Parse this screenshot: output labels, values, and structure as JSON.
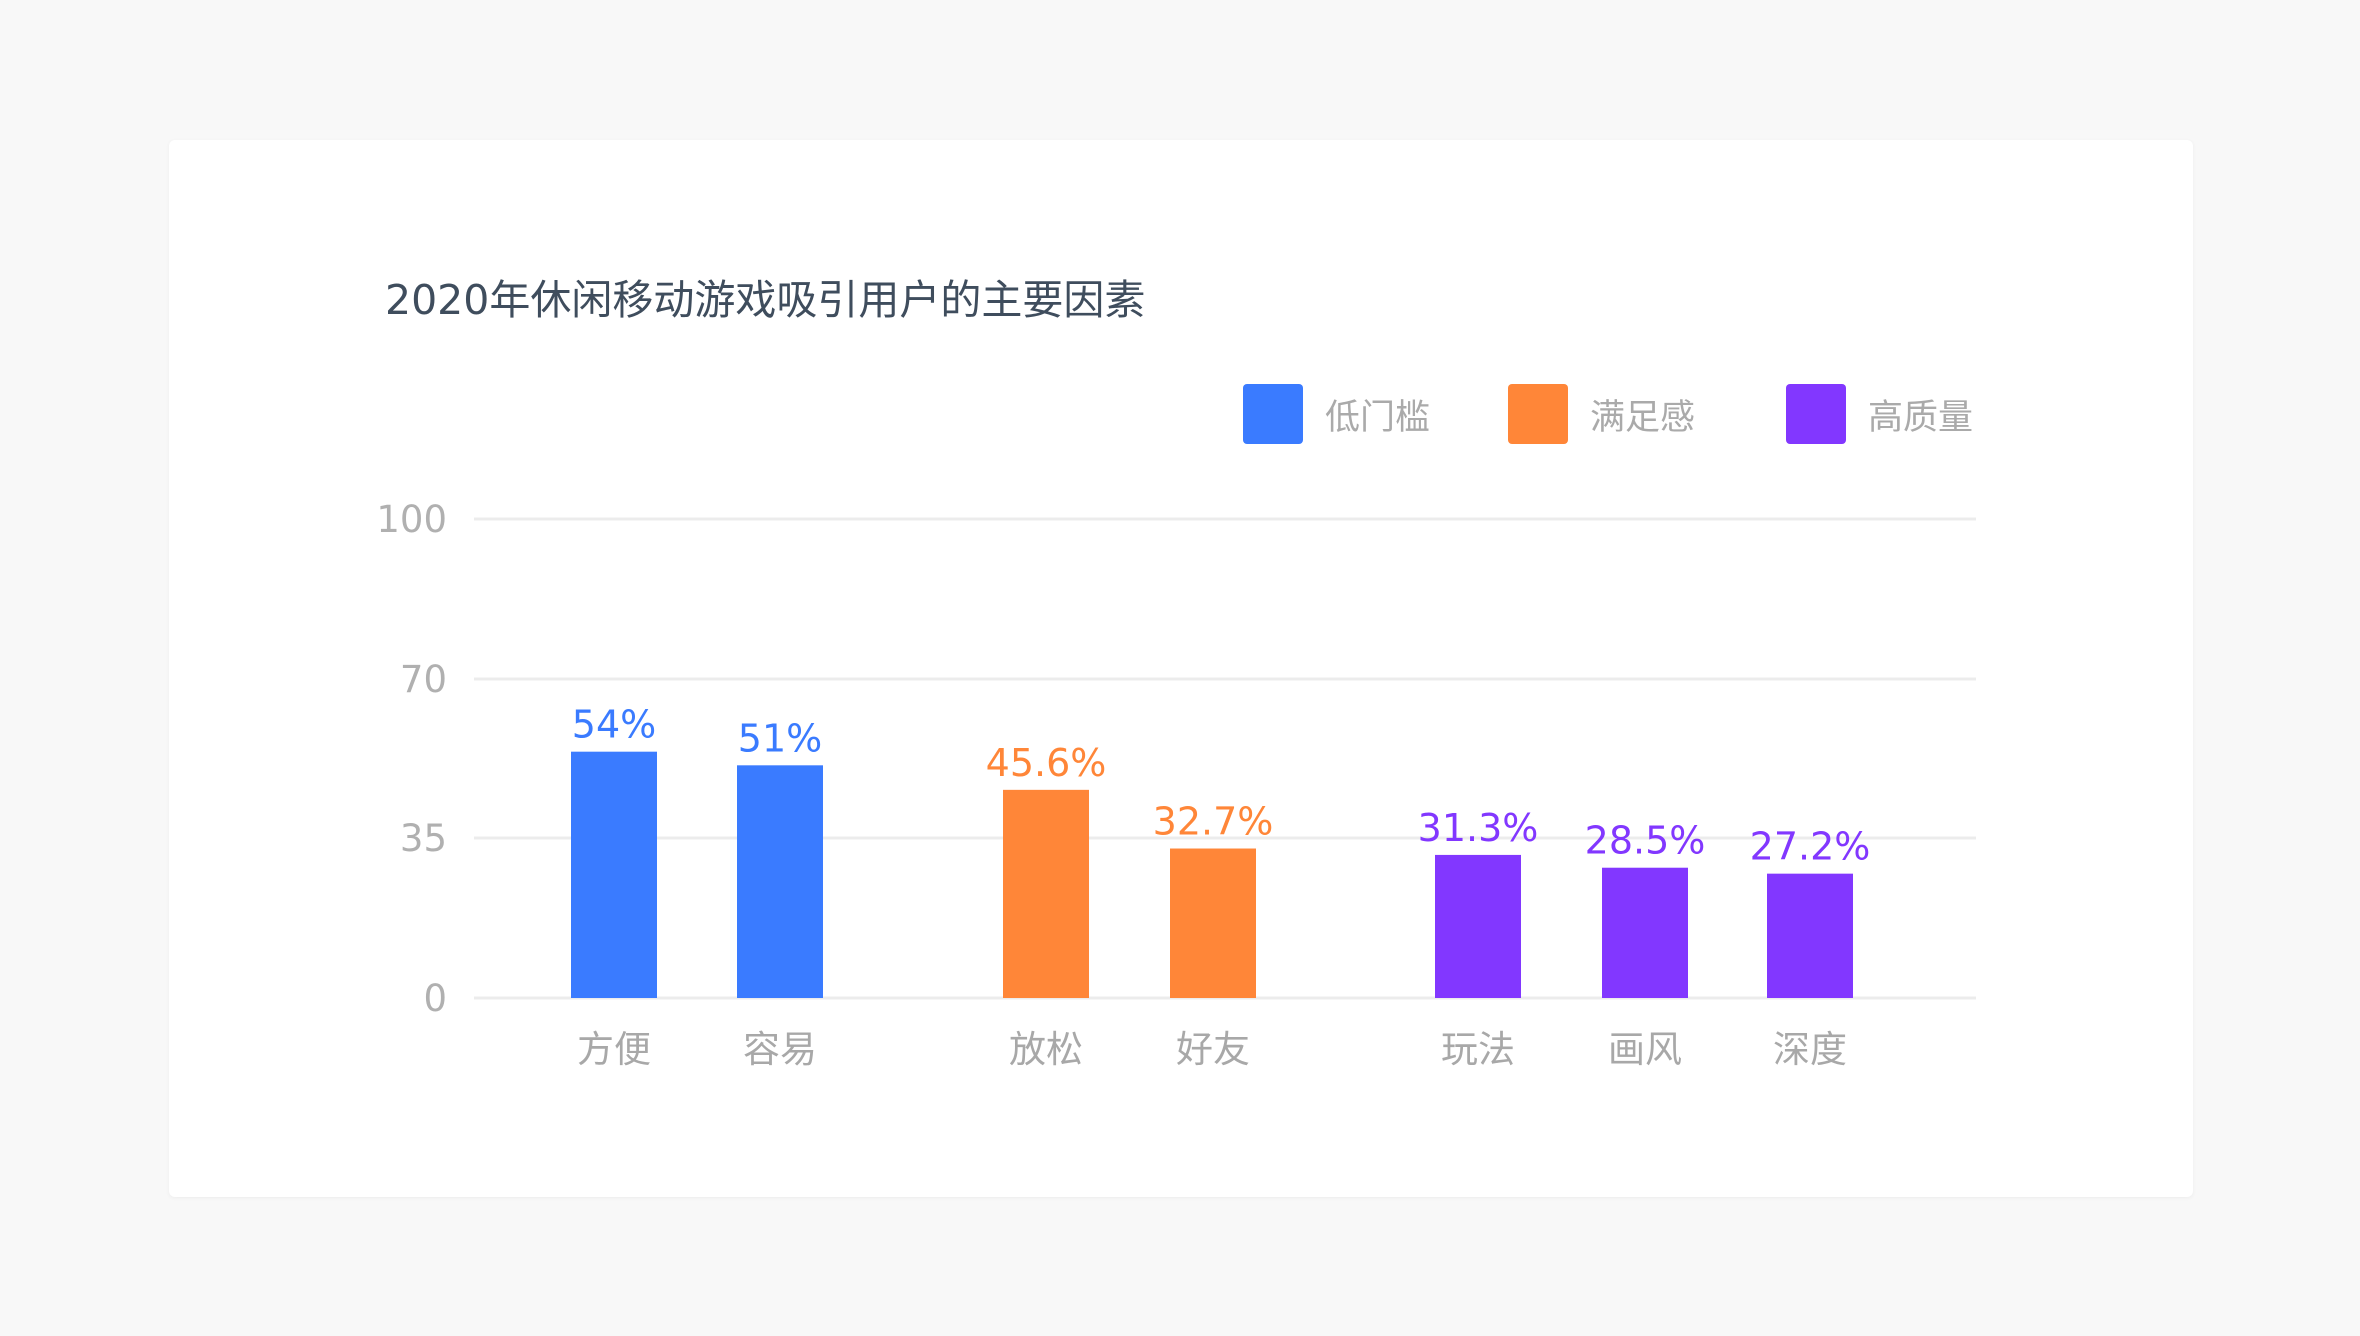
{
  "chart_data": {
    "type": "bar",
    "title": "2020年休闲移动游戏吸引用户的主要因素",
    "categories": [
      "方便",
      "容易",
      "放松",
      "好友",
      "玩法",
      "画风",
      "深度"
    ],
    "values": [
      54,
      51,
      45.6,
      32.7,
      31.3,
      28.5,
      27.2
    ],
    "value_labels": [
      "54%",
      "51%",
      "45.6%",
      "32.7%",
      "31.3%",
      "28.5%",
      "27.2%"
    ],
    "groups": [
      0,
      0,
      1,
      1,
      2,
      2,
      2
    ],
    "legend": [
      {
        "name": "低门槛",
        "color": "#3a7bff"
      },
      {
        "name": "满足感",
        "color": "#ff8638"
      },
      {
        "name": "高质量",
        "color": "#8237ff"
      }
    ],
    "legend_position": "top-right",
    "yticks": [
      0,
      35,
      70,
      100
    ],
    "ylim": [
      0,
      100
    ],
    "grid": true,
    "xlabel": "",
    "ylabel": ""
  }
}
